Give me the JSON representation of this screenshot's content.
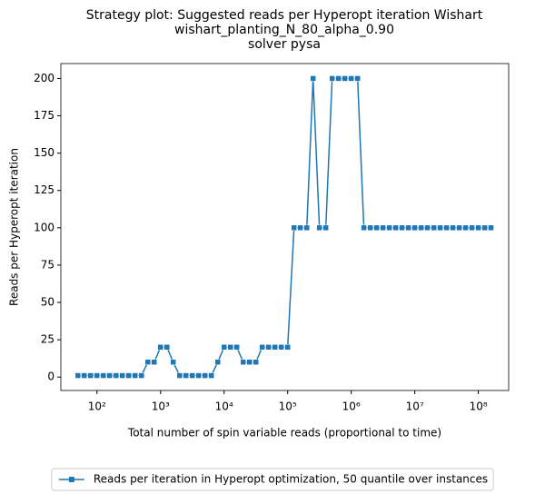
{
  "chart_data": {
    "type": "line",
    "title": [
      "Strategy plot: Suggested reads per Hyperopt iteration Wishart",
      "wishart_planting_N_80_alpha_0.90",
      "solver pysa"
    ],
    "xlabel": "Total number of spin variable reads (proportional to time)",
    "ylabel": "Reads per Hyperopt iteration",
    "xscale": "log",
    "xlim": [
      27,
      300000000
    ],
    "ylim": [
      -9,
      210
    ],
    "xticks": [
      {
        "value": 100,
        "label": "10²"
      },
      {
        "value": 1000,
        "label": "10³"
      },
      {
        "value": 10000,
        "label": "10⁴"
      },
      {
        "value": 100000,
        "label": "10⁵"
      },
      {
        "value": 1000000,
        "label": "10⁶"
      },
      {
        "value": 10000000,
        "label": "10⁷"
      },
      {
        "value": 100000000,
        "label": "10⁸"
      }
    ],
    "yticks": [
      0,
      25,
      50,
      75,
      100,
      125,
      150,
      175,
      200
    ],
    "legend_loc": "lower center",
    "x": [
      50.1,
      63.1,
      79.4,
      100,
      126,
      158,
      200,
      251,
      316,
      398,
      501,
      631,
      794,
      1000,
      1260,
      1580,
      2000,
      2510,
      3160,
      3980,
      5010,
      6310,
      7940,
      10000,
      12600,
      15800,
      20000,
      25100,
      31600,
      39800,
      50100,
      63100,
      79400,
      100000,
      126000,
      158000,
      200000,
      251000,
      316000,
      398000,
      501000,
      631000,
      794000,
      1000000,
      1260000,
      1580000,
      2000000,
      2510000,
      3160000,
      3980000,
      5010000,
      6310000,
      7940000,
      10000000,
      12600000,
      15800000,
      20000000,
      25100000,
      31600000,
      39800000,
      50100000,
      63100000,
      79400000,
      100000000,
      126000000,
      158000000
    ],
    "series": [
      {
        "name": "Reads per iteration in Hyperopt optimization, 50 quantile over instances",
        "color": "#1f77b4",
        "values": [
          1,
          1,
          1,
          1,
          1,
          1,
          1,
          1,
          1,
          1,
          1,
          10,
          10,
          20,
          20,
          10,
          1,
          1,
          1,
          1,
          1,
          1,
          10,
          20,
          20,
          20,
          10,
          10,
          10,
          20,
          20,
          20,
          20,
          20,
          100,
          100,
          100,
          200,
          100,
          100,
          200,
          200,
          200,
          200,
          200,
          100,
          100,
          100,
          100,
          100,
          100,
          100,
          100,
          100,
          100,
          100,
          100,
          100,
          100,
          100,
          100,
          100,
          100,
          100,
          100,
          100
        ]
      }
    ]
  }
}
